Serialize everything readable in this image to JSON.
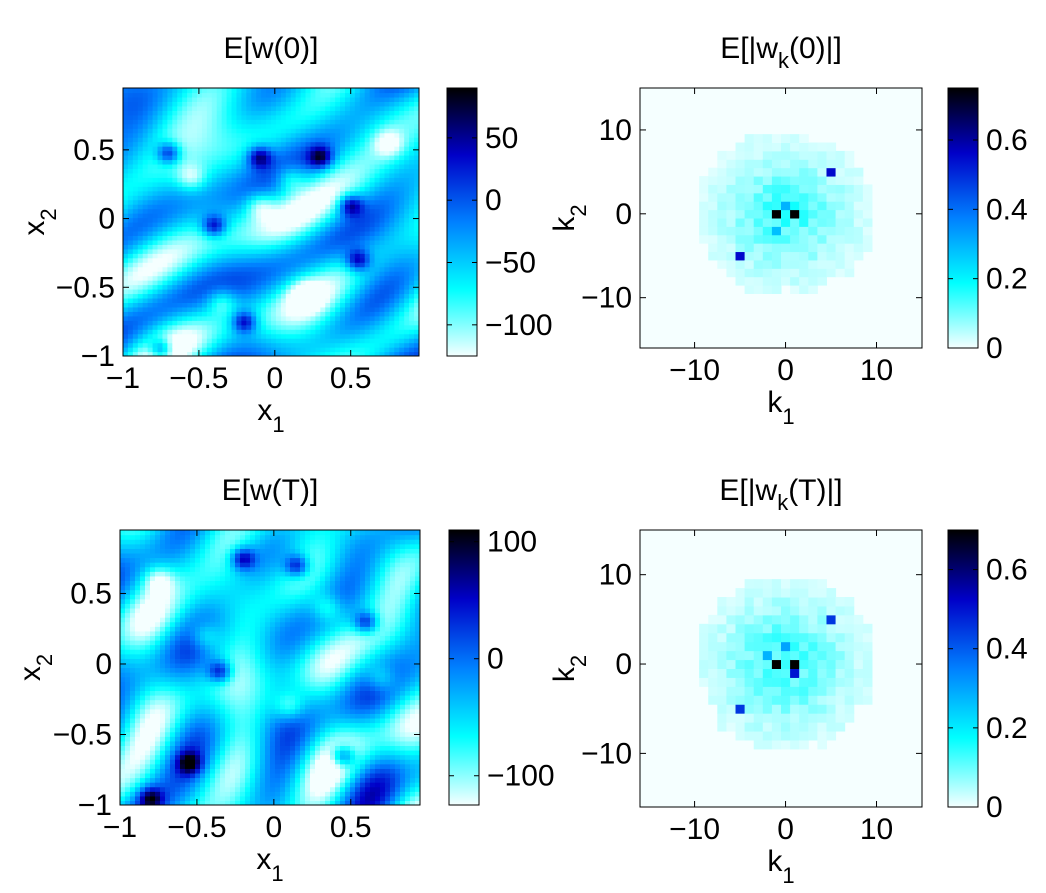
{
  "colormap": [
    "#f5ffff",
    "#00ffff",
    "#0080ff",
    "#0000c8",
    "#000000"
  ],
  "chart_data": [
    {
      "type": "heatmap",
      "title": "E[w(0)]",
      "xlabel": "x",
      "xlabel_sub": "1",
      "ylabel": "x",
      "ylabel_sub": "2",
      "xlim": [
        -1,
        0.95
      ],
      "ylim": [
        -1,
        0.95
      ],
      "xticks": [
        -1,
        -0.5,
        0,
        0.5
      ],
      "xtick_labels": [
        "−1",
        "−0.5",
        "0",
        "0.5"
      ],
      "yticks": [
        -1,
        -0.5,
        0,
        0.5
      ],
      "ytick_labels": [
        "−1",
        "−0.5",
        "0",
        "0.5"
      ],
      "clim": [
        -125,
        90
      ],
      "cticks": [
        -100,
        -50,
        0,
        50
      ],
      "ctick_labels": [
        "−100",
        "−50",
        "0",
        "50"
      ],
      "hot_spots": [
        [
          0.3,
          0.45
        ],
        [
          -0.4,
          -0.05
        ],
        [
          -0.7,
          0.48
        ],
        [
          -0.1,
          0.45
        ],
        [
          0.55,
          -0.3
        ],
        [
          -0.2,
          -0.75
        ],
        [
          0.5,
          0.1
        ],
        [
          -0.75,
          -0.95
        ]
      ],
      "cold_spots": [
        [
          -0.1,
          0.1
        ],
        [
          0.2,
          -0.55
        ],
        [
          -0.55,
          0.3
        ],
        [
          0.1,
          0.3
        ],
        [
          -0.35,
          -0.6
        ],
        [
          0.75,
          0.55
        ]
      ]
    },
    {
      "type": "heatmap",
      "title": "E[|w(0)|]",
      "title_sub": "k",
      "title_sub_after": "E[|w",
      "xlabel": "k",
      "xlabel_sub": "1",
      "ylabel": "k",
      "ylabel_sub": "2",
      "xlim": [
        -16,
        15
      ],
      "ylim": [
        -16,
        15
      ],
      "xticks": [
        -10,
        0,
        10
      ],
      "xtick_labels": [
        "−10",
        "0",
        "10"
      ],
      "yticks": [
        -10,
        0,
        10
      ],
      "ytick_labels": [
        "−10",
        "0",
        "10"
      ],
      "clim": [
        0,
        0.75
      ],
      "cticks": [
        0,
        0.2,
        0.4,
        0.6
      ],
      "ctick_labels": [
        "0",
        "0.2",
        "0.4",
        "0.6"
      ],
      "peaks": [
        [
          -1,
          0,
          0.75
        ],
        [
          1,
          0,
          0.75
        ],
        [
          5,
          5,
          0.55
        ],
        [
          -5,
          -5,
          0.55
        ],
        [
          0,
          1,
          0.3
        ],
        [
          -1,
          -2,
          0.28
        ]
      ]
    },
    {
      "type": "heatmap",
      "title": "E[w(T)]",
      "xlabel": "x",
      "xlabel_sub": "1",
      "ylabel": "x",
      "ylabel_sub": "2",
      "xlim": [
        -1,
        0.95
      ],
      "ylim": [
        -1,
        0.95
      ],
      "xticks": [
        -1,
        -0.5,
        0,
        0.5
      ],
      "xtick_labels": [
        "−1",
        "−0.5",
        "0",
        "0.5"
      ],
      "yticks": [
        -1,
        -0.5,
        0,
        0.5
      ],
      "ytick_labels": [
        "−1",
        "−0.5",
        "0",
        "0.5"
      ],
      "clim": [
        -125,
        110
      ],
      "cticks": [
        -100,
        0,
        100
      ],
      "ctick_labels": [
        "−100",
        "0",
        "100"
      ],
      "hot_spots": [
        [
          -0.35,
          -0.05
        ],
        [
          0.45,
          -0.65
        ],
        [
          -0.2,
          0.75
        ],
        [
          0.15,
          0.7
        ],
        [
          -0.8,
          -0.95
        ],
        [
          0.6,
          0.3
        ],
        [
          -0.55,
          -0.7
        ]
      ],
      "cold_spots": [
        [
          -0.45,
          0.2
        ],
        [
          0.35,
          0.4
        ],
        [
          -0.75,
          0.6
        ],
        [
          0.1,
          -0.3
        ],
        [
          0.7,
          -0.1
        ]
      ]
    },
    {
      "type": "heatmap",
      "title": "E[|w(T)|]",
      "title_sub": "k",
      "title_sub_after": "E[|w",
      "xlabel": "k",
      "xlabel_sub": "1",
      "ylabel": "k",
      "ylabel_sub": "2",
      "xlim": [
        -16,
        15
      ],
      "ylim": [
        -16,
        15
      ],
      "xticks": [
        -10,
        0,
        10
      ],
      "xtick_labels": [
        "−10",
        "0",
        "10"
      ],
      "yticks": [
        -10,
        0,
        10
      ],
      "ytick_labels": [
        "−10",
        "0",
        "10"
      ],
      "clim": [
        0,
        0.7
      ],
      "cticks": [
        0,
        0.2,
        0.4,
        0.6
      ],
      "ctick_labels": [
        "0",
        "0.2",
        "0.4",
        "0.6"
      ],
      "peaks": [
        [
          -1,
          0,
          0.7
        ],
        [
          1,
          0,
          0.7
        ],
        [
          1,
          -1,
          0.5
        ],
        [
          5,
          5,
          0.45
        ],
        [
          -5,
          -5,
          0.45
        ],
        [
          0,
          2,
          0.3
        ],
        [
          -2,
          1,
          0.28
        ]
      ]
    }
  ]
}
